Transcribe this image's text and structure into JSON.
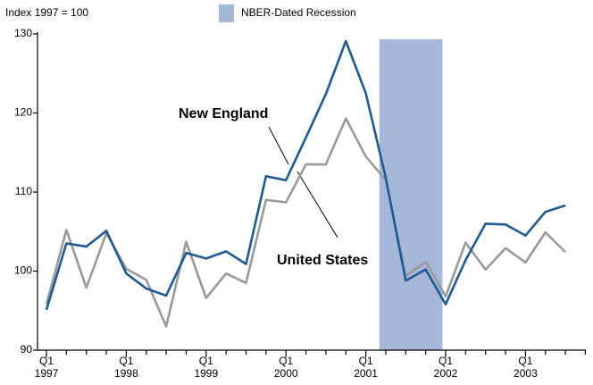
{
  "chart_data": {
    "type": "line",
    "y_unit_label": "Index 1997 = 100",
    "categories": [
      [
        "Q1",
        "1997"
      ],
      null,
      null,
      null,
      [
        "Q1",
        "1998"
      ],
      null,
      null,
      null,
      [
        "Q1",
        "1999"
      ],
      null,
      null,
      null,
      [
        "Q1",
        "2000"
      ],
      null,
      null,
      null,
      [
        "Q1",
        "2001"
      ],
      null,
      null,
      null,
      [
        "Q1",
        "2002"
      ],
      null,
      null,
      null,
      [
        "Q1",
        "2003"
      ],
      null,
      null
    ],
    "series": [
      {
        "name": "New England",
        "color": "#1f5a93",
        "values": [
          95.1,
          103.5,
          103.1,
          105.1,
          99.7,
          97.8,
          96.9,
          102.3,
          101.6,
          102.5,
          100.9,
          112.0,
          111.5,
          116.9,
          122.4,
          129.1,
          122.5,
          111.8,
          98.8,
          100.2,
          95.8,
          101.4,
          106.0,
          105.9,
          104.5,
          107.5,
          108.3
        ]
      },
      {
        "name": "United States",
        "color": "#9a9a9a",
        "values": [
          95.8,
          105.2,
          97.9,
          104.8,
          100.3,
          98.9,
          93.0,
          103.7,
          96.6,
          99.7,
          98.5,
          109.0,
          108.7,
          113.5,
          113.5,
          119.3,
          114.5,
          111.5,
          99.4,
          101.2,
          96.8,
          103.6,
          100.2,
          102.9,
          101.1,
          104.9,
          102.4
        ]
      }
    ],
    "recession": {
      "label": "NBER-Dated Recession",
      "color": "#a5b8d9",
      "start": 2001.17,
      "end": 2001.96
    },
    "first_year": 1997,
    "ylim": [
      90,
      130
    ],
    "yticks": [
      90,
      100,
      110,
      120,
      130
    ],
    "grid": false
  }
}
